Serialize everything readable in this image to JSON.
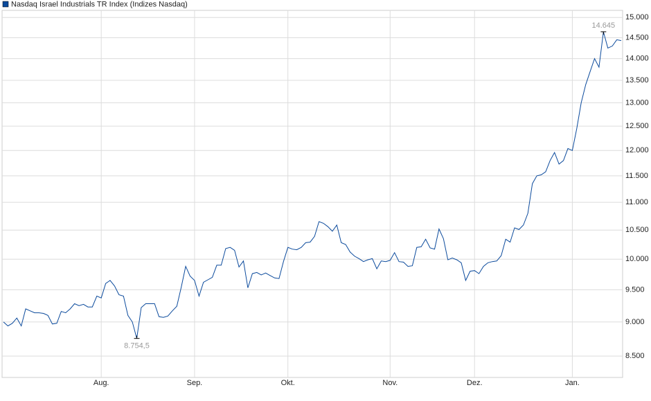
{
  "chart_data": {
    "type": "line",
    "series": [
      {
        "name": "Nasdaq Israel Industrials TR Index  (Indizes Nasdaq)",
        "color": "#0b4a9c",
        "values": [
          9000,
          8940,
          8980,
          9060,
          8940,
          9200,
          9170,
          9140,
          9140,
          9130,
          9100,
          8970,
          8980,
          9160,
          9140,
          9200,
          9280,
          9250,
          9270,
          9230,
          9230,
          9400,
          9370,
          9600,
          9650,
          9560,
          9420,
          9400,
          9100,
          9000,
          8754.5,
          9220,
          9280,
          9280,
          9280,
          9080,
          9070,
          9090,
          9170,
          9240,
          9540,
          9880,
          9720,
          9650,
          9400,
          9620,
          9660,
          9700,
          9900,
          9900,
          10180,
          10200,
          10150,
          9870,
          9970,
          9530,
          9760,
          9780,
          9740,
          9770,
          9730,
          9690,
          9680,
          9960,
          10200,
          10170,
          10160,
          10200,
          10280,
          10290,
          10390,
          10650,
          10620,
          10560,
          10480,
          10590,
          10280,
          10250,
          10120,
          10050,
          10010,
          9960,
          9990,
          10010,
          9840,
          9970,
          9960,
          9980,
          10110,
          9960,
          9950,
          9880,
          9890,
          10200,
          10210,
          10340,
          10190,
          10170,
          10520,
          10350,
          9990,
          10020,
          9990,
          9940,
          9650,
          9800,
          9810,
          9760,
          9880,
          9940,
          9960,
          9970,
          10060,
          10340,
          10290,
          10540,
          10510,
          10590,
          10800,
          11350,
          11500,
          11520,
          11580,
          11800,
          11960,
          11730,
          11800,
          12040,
          12000,
          12450,
          13000,
          13400,
          13700,
          14000,
          13800,
          14645,
          14250,
          14300,
          14450,
          14430
        ]
      }
    ],
    "categories": [
      null,
      null,
      null,
      null,
      null,
      null,
      null,
      null,
      null,
      null,
      null,
      null,
      null,
      null,
      null,
      null,
      null,
      null,
      null,
      null,
      null,
      null,
      "Aug.",
      null,
      null,
      null,
      null,
      null,
      null,
      null,
      null,
      null,
      null,
      null,
      null,
      null,
      null,
      null,
      null,
      null,
      null,
      null,
      null,
      "Sep.",
      null,
      null,
      null,
      null,
      null,
      null,
      null,
      null,
      null,
      null,
      null,
      null,
      null,
      null,
      null,
      null,
      null,
      null,
      null,
      null,
      "Okt.",
      null,
      null,
      null,
      null,
      null,
      null,
      null,
      null,
      null,
      null,
      null,
      null,
      null,
      null,
      null,
      null,
      null,
      null,
      null,
      null,
      null,
      null,
      "Nov.",
      null,
      null,
      null,
      null,
      null,
      null,
      null,
      null,
      null,
      null,
      null,
      null,
      null,
      null,
      null,
      null,
      null,
      null,
      "Dez.",
      null,
      null,
      null,
      null,
      null,
      null,
      null,
      null,
      null,
      null,
      null,
      null,
      null,
      null,
      null,
      null,
      null,
      null,
      null,
      null,
      null,
      "Jan.",
      null,
      null,
      null,
      null,
      null,
      null,
      null,
      null,
      null,
      null,
      null
    ],
    "ylim": [
      8200,
      15180
    ],
    "log_scale": true,
    "grid": true,
    "yticks": [
      {
        "value": 8500,
        "label": "8.500"
      },
      {
        "value": 9000,
        "label": "9.000"
      },
      {
        "value": 9500,
        "label": "9.500"
      },
      {
        "value": 10000,
        "label": "10.000"
      },
      {
        "value": 10500,
        "label": "10.500"
      },
      {
        "value": 11000,
        "label": "11.000"
      },
      {
        "value": 11500,
        "label": "11.500"
      },
      {
        "value": 12000,
        "label": "12.000"
      },
      {
        "value": 12500,
        "label": "12.500"
      },
      {
        "value": 13000,
        "label": "13.000"
      },
      {
        "value": 13500,
        "label": "13.500"
      },
      {
        "value": 14000,
        "label": "14.000"
      },
      {
        "value": 14500,
        "label": "14.500"
      },
      {
        "value": 15000,
        "label": "15.000"
      }
    ],
    "max_label": "14.645",
    "min_label": "8.754,5"
  }
}
